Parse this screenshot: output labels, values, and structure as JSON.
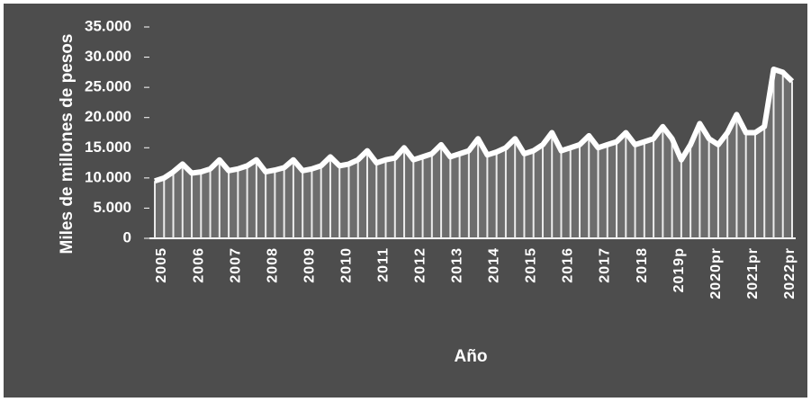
{
  "chart_data": {
    "type": "line",
    "y_label": "Miles de millones de pesos",
    "x_label": "Año",
    "color": "#ffffff",
    "categories": [
      "2005",
      null,
      null,
      null,
      "2006",
      null,
      null,
      null,
      "2007",
      null,
      null,
      null,
      "2008",
      null,
      null,
      null,
      "2009",
      null,
      null,
      null,
      "2010",
      null,
      null,
      null,
      "2011",
      null,
      null,
      null,
      "2012",
      null,
      null,
      null,
      "2013",
      null,
      null,
      null,
      "2014",
      null,
      null,
      null,
      "2015",
      null,
      null,
      null,
      "2016",
      null,
      null,
      null,
      "2017",
      null,
      null,
      null,
      "2018",
      null,
      null,
      null,
      "2019p",
      null,
      null,
      null,
      "2020pr",
      null,
      null,
      null,
      "2021pr",
      null,
      null,
      null,
      "2022pr",
      null
    ],
    "values": [
      9500,
      10000,
      11000,
      12300,
      10800,
      11000,
      11500,
      13000,
      11200,
      11500,
      12000,
      13000,
      11000,
      11300,
      11700,
      13000,
      11200,
      11500,
      12000,
      13500,
      12000,
      12300,
      13000,
      14500,
      12500,
      13000,
      13300,
      15000,
      13000,
      13500,
      14000,
      15500,
      13500,
      14000,
      14500,
      16500,
      13800,
      14300,
      15000,
      16500,
      14000,
      14500,
      15500,
      17500,
      14500,
      15000,
      15500,
      17000,
      15000,
      15500,
      16000,
      17500,
      15500,
      16000,
      16500,
      18500,
      16500,
      13000,
      15500,
      19000,
      16500,
      15500,
      17500,
      20500,
      17500,
      17500,
      18500,
      28000,
      27500,
      26000
    ],
    "ylim": [
      0,
      35000
    ],
    "yticks": [
      0,
      {
        "value": 5000,
        "label": "5.000"
      },
      {
        "value": 10000,
        "label": "10.000"
      },
      {
        "value": 15000,
        "label": "15.000"
      },
      {
        "value": 20000,
        "label": "20.000"
      },
      {
        "value": 25000,
        "label": "25.000"
      },
      {
        "value": 30000,
        "label": "30.000"
      },
      {
        "value": 35000,
        "label": "35.000"
      }
    ]
  }
}
